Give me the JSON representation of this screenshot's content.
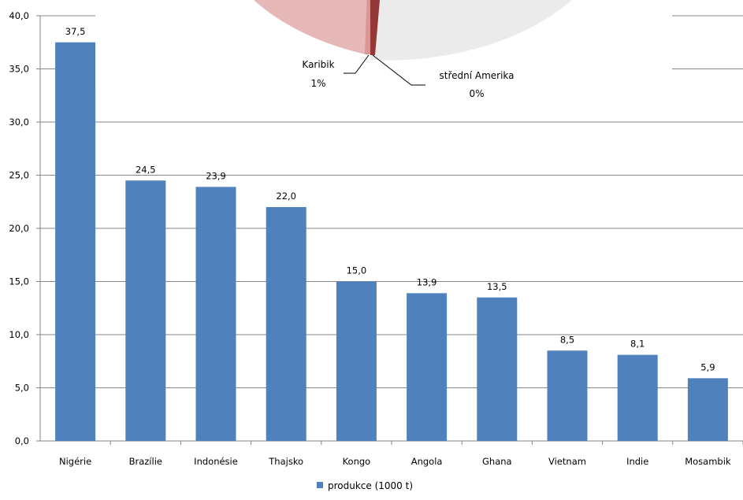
{
  "chart_data": [
    {
      "type": "bar",
      "categories": [
        "Nigérie",
        "Brazílie",
        "Indonésie",
        "Thajsko",
        "Kongo",
        "Angola",
        "Ghana",
        "Vietnam",
        "Indie",
        "Mosambik"
      ],
      "series": [
        {
          "name": "produkce (1000 t)",
          "values": [
            37.5,
            24.5,
            23.9,
            22.0,
            15.0,
            13.9,
            13.5,
            8.5,
            8.1,
            5.9
          ]
        }
      ],
      "data_labels": [
        "37,5",
        "24,5",
        "23,9",
        "22,0",
        "15,0",
        "13,9",
        "13,5",
        "8,5",
        "8,1",
        "5,9"
      ],
      "ylim": [
        0,
        40
      ],
      "yticks": [
        "0,0",
        "5,0",
        "10,0",
        "15,0",
        "20,0",
        "25,0",
        "30,0",
        "35,0",
        "40,0"
      ],
      "grid": true,
      "legend_position": "bottom",
      "bar_color": "#4F81BD"
    },
    {
      "type": "pie",
      "partially_visible": true,
      "slices": [
        {
          "label": "Karibik",
          "percent_label": "1%",
          "color": "#C0504D"
        },
        {
          "label": "střední Amerika",
          "percent_label": "0%",
          "color": "#8B2020"
        }
      ]
    }
  ]
}
